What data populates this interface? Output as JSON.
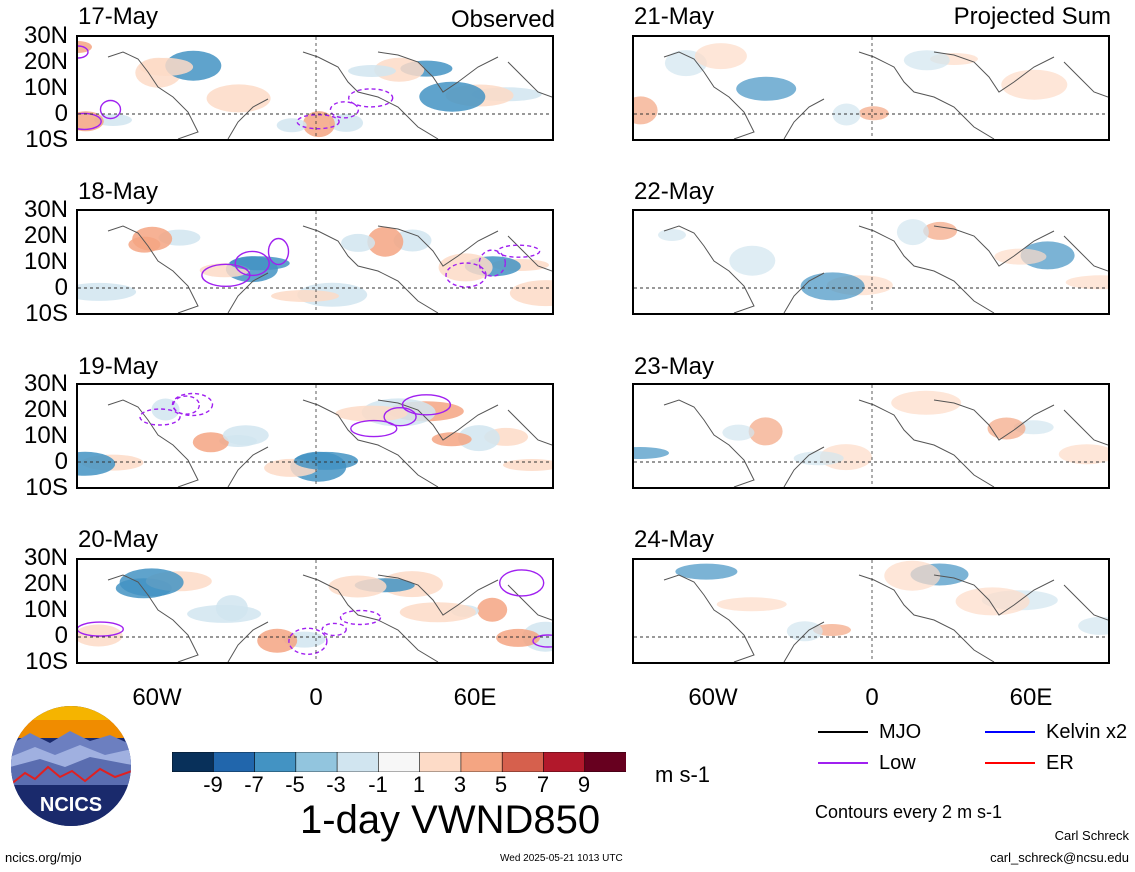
{
  "left_header": "Observed",
  "right_header": "Projected Sum",
  "observed_dates": [
    "17-May",
    "18-May",
    "19-May",
    "20-May"
  ],
  "projected_dates": [
    "21-May",
    "22-May",
    "23-May",
    "24-May"
  ],
  "lat_labels": [
    "30N",
    "20N",
    "10N",
    "0",
    "10S"
  ],
  "lon_labels": [
    "60W",
    "0",
    "60E"
  ],
  "colorbar": {
    "ticks": [
      "-9",
      "-7",
      "-5",
      "-3",
      "-1",
      "1",
      "3",
      "5",
      "7",
      "9"
    ],
    "colors": [
      "#08305a",
      "#2166ac",
      "#4393c3",
      "#92c5de",
      "#d1e5f0",
      "#f7f7f7",
      "#fddbc7",
      "#f4a582",
      "#d6604d",
      "#b2182b",
      "#67001f"
    ],
    "unit": "m s-1"
  },
  "title": "1-day VWND850",
  "legend": {
    "items": [
      {
        "label": "MJO",
        "color": "#000000"
      },
      {
        "label": "Kelvin x2",
        "color": "#0000ff"
      },
      {
        "label": "Low",
        "color": "#a020f0"
      },
      {
        "label": "ER",
        "color": "#ff0000"
      }
    ],
    "note": "Contours every 2 m s-1"
  },
  "author": "Carl Schreck",
  "email": "carl_schreck@ncsu.edu",
  "site": "ncics.org/mjo",
  "timestamp": "Wed 2025-05-21 1013 UTC",
  "logo_text": "NCICS"
}
